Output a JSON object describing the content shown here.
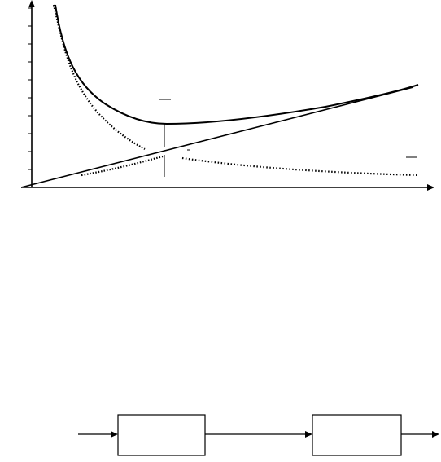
{
  "diagram": {
    "type": "cost-curves-and-flow",
    "chart_data": {
      "type": "line",
      "title": "",
      "xlabel": "",
      "ylabel": "",
      "series": [
        {
          "kind": "u-shaped-total",
          "style": "solid"
        },
        {
          "kind": "decreasing-hyperbola",
          "style": "dotted"
        },
        {
          "kind": "increasing-linear",
          "style": "solid"
        }
      ],
      "marker": "minimum-of-total",
      "grid": false
    },
    "flow": {
      "boxes": [
        {
          "label": ""
        },
        {
          "label": ""
        }
      ]
    }
  }
}
